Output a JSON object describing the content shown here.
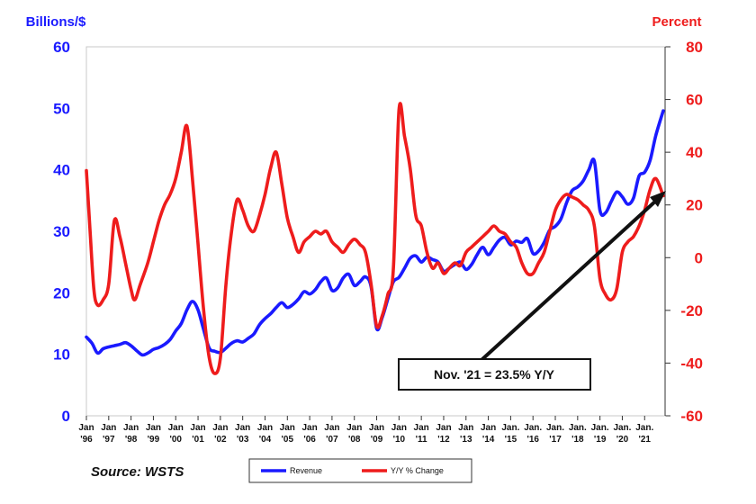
{
  "chart_data": {
    "type": "line",
    "left_axis_title": "Billions/$",
    "right_axis_title": "Percent",
    "left_ylim": [
      0,
      60
    ],
    "left_ticks": [
      "0",
      "10",
      "20",
      "30",
      "40",
      "50",
      "60"
    ],
    "right_ylim": [
      -60,
      80
    ],
    "right_ticks": [
      "-60",
      "-40",
      "-20",
      "0",
      "20",
      "40",
      "60",
      "80"
    ],
    "x_tick_labels": [
      [
        "Jan",
        "'96"
      ],
      [
        "Jan",
        "'97"
      ],
      [
        "Jan",
        "'98"
      ],
      [
        "Jan",
        "'99"
      ],
      [
        "Jan",
        "'00"
      ],
      [
        "Jan",
        "'01"
      ],
      [
        "Jan",
        "'02"
      ],
      [
        "Jan",
        "'03"
      ],
      [
        "Jan",
        "'04"
      ],
      [
        "Jan",
        "'05"
      ],
      [
        "Jan",
        "'06"
      ],
      [
        "Jan",
        "'07"
      ],
      [
        "Jan",
        "'08"
      ],
      [
        "Jan",
        "'09"
      ],
      [
        "Jan",
        "'10"
      ],
      [
        "Jan",
        "'11"
      ],
      [
        "Jan",
        "'12"
      ],
      [
        "Jan",
        "'13"
      ],
      [
        "Jan",
        "'14"
      ],
      [
        "Jan.",
        "'15"
      ],
      [
        "Jan.",
        "'16"
      ],
      [
        "Jan.",
        "'17"
      ],
      [
        "Jan.",
        "'18"
      ],
      [
        "Jan.",
        "'19"
      ],
      [
        "Jan.",
        "'20"
      ],
      [
        "Jan.",
        "'21"
      ]
    ],
    "grid": false,
    "legend_position": "bottom-center",
    "source": "Source: WSTS",
    "annotation": "Nov. '21 = 23.5% Y/Y",
    "series": [
      {
        "name": "Revenue",
        "axis": "left",
        "color": "#1a1aff",
        "points": [
          [
            "1996-01",
            12.8
          ],
          [
            "1996-04",
            11.8
          ],
          [
            "1996-07",
            10.2
          ],
          [
            "1996-10",
            10.9
          ],
          [
            "1997-01",
            11.2
          ],
          [
            "1997-04",
            11.4
          ],
          [
            "1997-07",
            11.6
          ],
          [
            "1997-10",
            11.9
          ],
          [
            "1998-01",
            11.4
          ],
          [
            "1998-04",
            10.6
          ],
          [
            "1998-07",
            9.9
          ],
          [
            "1998-10",
            10.2
          ],
          [
            "1999-01",
            10.8
          ],
          [
            "1999-04",
            11.1
          ],
          [
            "1999-07",
            11.6
          ],
          [
            "1999-10",
            12.4
          ],
          [
            "2000-01",
            13.8
          ],
          [
            "2000-04",
            15.0
          ],
          [
            "2000-07",
            17.2
          ],
          [
            "2000-10",
            18.6
          ],
          [
            "2001-01",
            17.2
          ],
          [
            "2001-04",
            14.0
          ],
          [
            "2001-07",
            11.0
          ],
          [
            "2001-10",
            10.5
          ],
          [
            "2002-01",
            10.3
          ],
          [
            "2002-04",
            11.0
          ],
          [
            "2002-07",
            11.8
          ],
          [
            "2002-10",
            12.2
          ],
          [
            "2003-01",
            12.0
          ],
          [
            "2003-04",
            12.6
          ],
          [
            "2003-07",
            13.3
          ],
          [
            "2003-10",
            14.8
          ],
          [
            "2004-01",
            15.8
          ],
          [
            "2004-04",
            16.6
          ],
          [
            "2004-07",
            17.6
          ],
          [
            "2004-10",
            18.4
          ],
          [
            "2005-01",
            17.6
          ],
          [
            "2005-04",
            18.1
          ],
          [
            "2005-07",
            19.0
          ],
          [
            "2005-10",
            20.2
          ],
          [
            "2006-01",
            19.8
          ],
          [
            "2006-04",
            20.5
          ],
          [
            "2006-07",
            21.8
          ],
          [
            "2006-10",
            22.4
          ],
          [
            "2007-01",
            20.4
          ],
          [
            "2007-04",
            20.8
          ],
          [
            "2007-07",
            22.4
          ],
          [
            "2007-10",
            23.0
          ],
          [
            "2008-01",
            21.2
          ],
          [
            "2008-04",
            21.8
          ],
          [
            "2008-07",
            22.6
          ],
          [
            "2008-10",
            21.0
          ],
          [
            "2009-01",
            14.2
          ],
          [
            "2009-04",
            16.0
          ],
          [
            "2009-07",
            19.0
          ],
          [
            "2009-10",
            21.8
          ],
          [
            "2010-01",
            22.5
          ],
          [
            "2010-04",
            24.0
          ],
          [
            "2010-07",
            25.6
          ],
          [
            "2010-10",
            26.0
          ],
          [
            "2011-01",
            25.0
          ],
          [
            "2011-04",
            25.8
          ],
          [
            "2011-07",
            25.4
          ],
          [
            "2011-10",
            25.0
          ],
          [
            "2012-01",
            23.5
          ],
          [
            "2012-04",
            24.0
          ],
          [
            "2012-07",
            24.6
          ],
          [
            "2012-10",
            25.0
          ],
          [
            "2013-01",
            23.8
          ],
          [
            "2013-04",
            24.6
          ],
          [
            "2013-07",
            26.2
          ],
          [
            "2013-10",
            27.4
          ],
          [
            "2014-01",
            26.2
          ],
          [
            "2014-04",
            27.4
          ],
          [
            "2014-07",
            28.6
          ],
          [
            "2014-10",
            29.0
          ],
          [
            "2015-01",
            27.8
          ],
          [
            "2015-04",
            28.4
          ],
          [
            "2015-07",
            28.2
          ],
          [
            "2015-10",
            28.8
          ],
          [
            "2016-01",
            26.4
          ],
          [
            "2016-04",
            26.8
          ],
          [
            "2016-07",
            28.2
          ],
          [
            "2016-10",
            30.2
          ],
          [
            "2017-01",
            30.8
          ],
          [
            "2017-04",
            32.0
          ],
          [
            "2017-07",
            34.6
          ],
          [
            "2017-10",
            36.6
          ],
          [
            "2018-01",
            37.2
          ],
          [
            "2018-04",
            38.2
          ],
          [
            "2018-07",
            40.0
          ],
          [
            "2018-10",
            41.4
          ],
          [
            "2019-01",
            33.4
          ],
          [
            "2019-04",
            33.0
          ],
          [
            "2019-07",
            34.8
          ],
          [
            "2019-10",
            36.4
          ],
          [
            "2020-01",
            35.6
          ],
          [
            "2020-04",
            34.4
          ],
          [
            "2020-07",
            35.4
          ],
          [
            "2020-10",
            39.0
          ],
          [
            "2021-01",
            39.6
          ],
          [
            "2021-04",
            41.6
          ],
          [
            "2021-07",
            45.6
          ],
          [
            "2021-11",
            49.6
          ]
        ]
      },
      {
        "name": "Y/Y % Change",
        "axis": "right",
        "color": "#ee1c1c",
        "points": [
          [
            "1996-01",
            33
          ],
          [
            "1996-03",
            10
          ],
          [
            "1996-05",
            -12
          ],
          [
            "1996-07",
            -18
          ],
          [
            "1996-10",
            -16
          ],
          [
            "1997-01",
            -10
          ],
          [
            "1997-04",
            14
          ],
          [
            "1997-07",
            8
          ],
          [
            "1997-10",
            -2
          ],
          [
            "1998-01",
            -12
          ],
          [
            "1998-03",
            -16
          ],
          [
            "1998-06",
            -10
          ],
          [
            "1998-10",
            -2
          ],
          [
            "1999-01",
            6
          ],
          [
            "1999-04",
            14
          ],
          [
            "1999-07",
            20
          ],
          [
            "1999-10",
            24
          ],
          [
            "2000-01",
            30
          ],
          [
            "2000-04",
            40
          ],
          [
            "2000-07",
            50
          ],
          [
            "2000-10",
            30
          ],
          [
            "2001-01",
            5
          ],
          [
            "2001-04",
            -20
          ],
          [
            "2001-07",
            -38
          ],
          [
            "2001-10",
            -44
          ],
          [
            "2002-01",
            -38
          ],
          [
            "2002-04",
            -10
          ],
          [
            "2002-07",
            10
          ],
          [
            "2002-10",
            22
          ],
          [
            "2003-01",
            18
          ],
          [
            "2003-04",
            12
          ],
          [
            "2003-07",
            10
          ],
          [
            "2003-10",
            16
          ],
          [
            "2004-01",
            24
          ],
          [
            "2004-04",
            34
          ],
          [
            "2004-07",
            40
          ],
          [
            "2004-10",
            28
          ],
          [
            "2005-01",
            15
          ],
          [
            "2005-04",
            8
          ],
          [
            "2005-07",
            2
          ],
          [
            "2005-10",
            6
          ],
          [
            "2006-01",
            8
          ],
          [
            "2006-04",
            10
          ],
          [
            "2006-07",
            9
          ],
          [
            "2006-10",
            10
          ],
          [
            "2007-01",
            6
          ],
          [
            "2007-04",
            4
          ],
          [
            "2007-07",
            2
          ],
          [
            "2007-10",
            5
          ],
          [
            "2008-01",
            7
          ],
          [
            "2008-04",
            5
          ],
          [
            "2008-07",
            2
          ],
          [
            "2008-10",
            -10
          ],
          [
            "2009-01",
            -26
          ],
          [
            "2009-04",
            -22
          ],
          [
            "2009-07",
            -14
          ],
          [
            "2009-10",
            -4
          ],
          [
            "2010-01",
            56
          ],
          [
            "2010-04",
            46
          ],
          [
            "2010-07",
            34
          ],
          [
            "2010-10",
            16
          ],
          [
            "2011-01",
            12
          ],
          [
            "2011-04",
            2
          ],
          [
            "2011-07",
            -4
          ],
          [
            "2011-10",
            -2
          ],
          [
            "2012-01",
            -6
          ],
          [
            "2012-04",
            -4
          ],
          [
            "2012-07",
            -2
          ],
          [
            "2012-10",
            -3
          ],
          [
            "2013-01",
            2
          ],
          [
            "2013-04",
            4
          ],
          [
            "2013-07",
            6
          ],
          [
            "2013-10",
            8
          ],
          [
            "2014-01",
            10
          ],
          [
            "2014-04",
            12
          ],
          [
            "2014-07",
            10
          ],
          [
            "2014-10",
            9
          ],
          [
            "2015-01",
            6
          ],
          [
            "2015-04",
            4
          ],
          [
            "2015-07",
            -2
          ],
          [
            "2015-10",
            -6
          ],
          [
            "2016-01",
            -6
          ],
          [
            "2016-04",
            -2
          ],
          [
            "2016-07",
            2
          ],
          [
            "2016-10",
            10
          ],
          [
            "2017-01",
            18
          ],
          [
            "2017-04",
            22
          ],
          [
            "2017-07",
            24
          ],
          [
            "2017-10",
            23
          ],
          [
            "2018-01",
            22
          ],
          [
            "2018-04",
            20
          ],
          [
            "2018-07",
            18
          ],
          [
            "2018-10",
            12
          ],
          [
            "2019-01",
            -8
          ],
          [
            "2019-04",
            -14
          ],
          [
            "2019-07",
            -16
          ],
          [
            "2019-10",
            -12
          ],
          [
            "2020-01",
            2
          ],
          [
            "2020-04",
            6
          ],
          [
            "2020-07",
            8
          ],
          [
            "2020-10",
            12
          ],
          [
            "2021-01",
            18
          ],
          [
            "2021-04",
            26
          ],
          [
            "2021-07",
            30
          ],
          [
            "2021-11",
            23.5
          ]
        ]
      }
    ]
  }
}
